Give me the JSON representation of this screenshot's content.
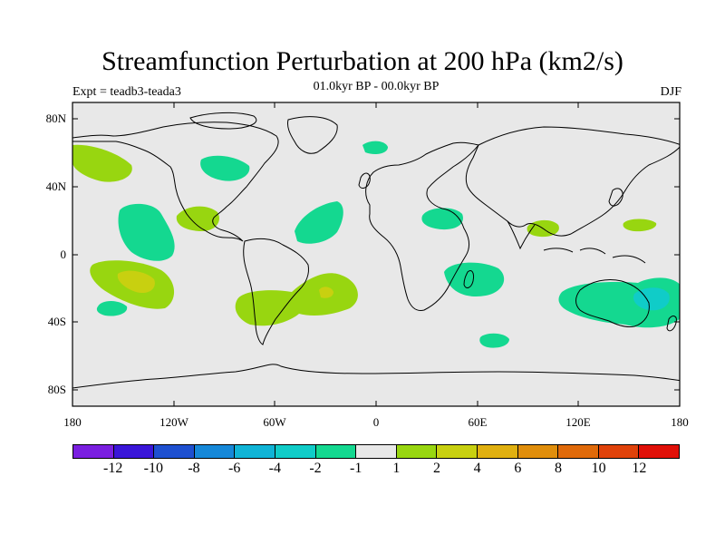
{
  "title": "Streamfunction Perturbation at 200 hPa (km2/s)",
  "subtitle": "01.0kyr BP - 00.0kyr BP",
  "experiment": "Expt = teadb3-teada3",
  "season": "DJF",
  "lat_labels": [
    "80N",
    "40N",
    "0",
    "40S",
    "80S"
  ],
  "lon_labels": [
    "180",
    "120W",
    "60W",
    "0",
    "60E",
    "120E",
    "180"
  ],
  "colorbar": {
    "colors": [
      "#7a1fe0",
      "#3a16d8",
      "#1e50d0",
      "#1688d8",
      "#10b4d6",
      "#10ccc8",
      "#14d890",
      "#e8e8e8",
      "#98d610",
      "#c8d010",
      "#e0b010",
      "#e08e0c",
      "#e06a0a",
      "#e0420a",
      "#e01008"
    ],
    "labels": [
      "-12",
      "-10",
      "-8",
      "-6",
      "-4",
      "-2",
      "-1",
      "1",
      "2",
      "4",
      "6",
      "8",
      "10",
      "12"
    ]
  },
  "colors": {
    "background": "#e8e8e8",
    "coast": "#000000",
    "neg1": "#14d890",
    "neg2": "#10ccc8",
    "pos1": "#98d610",
    "pos2": "#c8d010"
  }
}
